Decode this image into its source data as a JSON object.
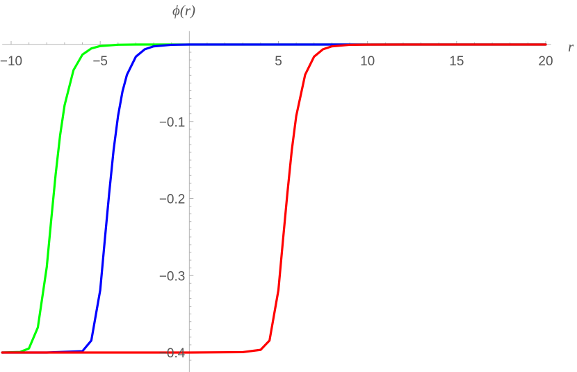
{
  "chart_data": {
    "type": "line",
    "title": "",
    "xlabel": "r",
    "ylabel": "ϕ(r)",
    "xlim": [
      -10.5,
      20.3
    ],
    "ylim": [
      -0.425,
      0.012
    ],
    "x_ticks": [
      -10,
      -5,
      5,
      10,
      15,
      20
    ],
    "x_tick_labels": [
      "−10",
      "−5",
      "5",
      "10",
      "15",
      "20"
    ],
    "y_ticks": [
      -0.1,
      -0.2,
      -0.3,
      -0.4
    ],
    "y_tick_labels": [
      "−0.1",
      "−0.2",
      "−0.3",
      "−0.4"
    ],
    "grid": false,
    "legend": "none",
    "series": [
      {
        "color": "#00ff00",
        "x": [
          -10.5,
          -9.5,
          -9.0,
          -8.5,
          -8.0,
          -7.75,
          -7.5,
          -7.25,
          -7.0,
          -6.5,
          -6.0,
          -5.5,
          -5.0,
          -4.0,
          -3.0,
          -2.0,
          0.0,
          5.0,
          10.0,
          15.0,
          20.0
        ],
        "y": [
          -0.4,
          -0.3993,
          -0.3947,
          -0.3674,
          -0.2889,
          -0.2277,
          -0.1684,
          -0.1177,
          -0.0789,
          -0.0333,
          -0.0132,
          -0.0051,
          -0.002,
          -0.0003,
          0.0,
          0.0,
          0.0,
          0.0,
          0.0,
          0.0,
          0.0
        ]
      },
      {
        "color": "#0000ff",
        "x": [
          -10.5,
          -8.0,
          -6.0,
          -5.5,
          -5.0,
          -4.75,
          -4.5,
          -4.25,
          -4.0,
          -3.75,
          -3.5,
          -3.0,
          -2.5,
          -2.0,
          -1.0,
          0.0,
          2.0,
          5.0,
          10.0,
          15.0,
          20.0
        ],
        "y": [
          -0.4,
          -0.4,
          -0.3983,
          -0.3844,
          -0.3189,
          -0.2555,
          -0.1939,
          -0.1372,
          -0.0928,
          -0.0609,
          -0.0392,
          -0.0158,
          -0.0062,
          -0.0024,
          -0.0004,
          0.0,
          0.0,
          0.0,
          0.0,
          0.0,
          0.0
        ]
      },
      {
        "color": "#ff0000",
        "x": [
          -10.5,
          -5.0,
          0.0,
          3.0,
          4.0,
          4.5,
          5.0,
          5.25,
          5.5,
          5.75,
          6.0,
          6.5,
          7.0,
          7.5,
          8.0,
          9.0,
          10.0,
          12.0,
          15.0,
          20.0
        ],
        "y": [
          -0.4,
          -0.4,
          -0.4,
          -0.3995,
          -0.3965,
          -0.3844,
          -0.3189,
          -0.2555,
          -0.1939,
          -0.1372,
          -0.0928,
          -0.0392,
          -0.0158,
          -0.0062,
          -0.0024,
          -0.0004,
          -0.0001,
          0.0,
          0.0,
          0.0
        ]
      }
    ]
  }
}
